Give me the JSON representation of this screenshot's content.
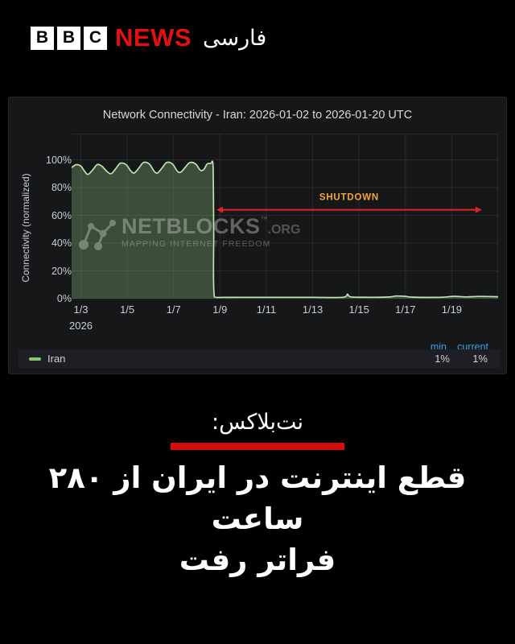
{
  "header": {
    "bbc_blocks": [
      "B",
      "B",
      "C"
    ],
    "news": "NEWS",
    "brand_fa": "فارسی",
    "news_color": "#e60f0f"
  },
  "chart": {
    "title": "Network Connectivity - Iran: 2026-01-02 to 2026-01-20 UTC",
    "ylabel": "Connectivity (normalized)",
    "year_label": "2026",
    "watermark": {
      "name": "NETBLOCKS",
      "tm": "™",
      "org": ".ORG",
      "tagline": "MAPPING INTERNET FREEDOM"
    },
    "legend": {
      "series_label": "Iran",
      "col_min": "min",
      "col_current": "current",
      "min_value": "1%",
      "current_value": "1%"
    }
  },
  "chart_data": {
    "type": "area",
    "title": "Network Connectivity - Iran: 2026-01-02 to 2026-01-20 UTC",
    "xlabel": "",
    "ylabel": "Connectivity (normalized)",
    "ylim": [
      0,
      100
    ],
    "y_ticks": [
      "0%",
      "20%",
      "40%",
      "60%",
      "80%",
      "100%"
    ],
    "x_tick_labels": [
      "1/3",
      "1/5",
      "1/7",
      "1/9",
      "1/11",
      "1/13",
      "1/15",
      "1/17",
      "1/19"
    ],
    "x_tick_days": [
      3,
      5,
      7,
      9,
      11,
      13,
      15,
      17,
      19
    ],
    "x_domain_days": [
      2.6,
      21.0
    ],
    "grid": true,
    "legend_position": "bottom",
    "series": [
      {
        "name": "Iran",
        "line_color": "#bfe3b0",
        "fill_color": "rgba(150,205,135,0.30)",
        "min": "1%",
        "current": "1%",
        "points_day_value": [
          [
            2.6,
            94.5
          ],
          [
            2.8,
            96.5
          ],
          [
            3.0,
            95.5
          ],
          [
            3.15,
            92
          ],
          [
            3.3,
            89.5
          ],
          [
            3.5,
            92.5
          ],
          [
            3.7,
            96.5
          ],
          [
            3.9,
            95.5
          ],
          [
            4.1,
            92
          ],
          [
            4.3,
            90
          ],
          [
            4.5,
            93.5
          ],
          [
            4.7,
            97.5
          ],
          [
            4.95,
            96.5
          ],
          [
            5.15,
            92
          ],
          [
            5.3,
            90.5
          ],
          [
            5.5,
            94
          ],
          [
            5.7,
            98
          ],
          [
            5.95,
            97
          ],
          [
            6.15,
            92
          ],
          [
            6.3,
            90.5
          ],
          [
            6.5,
            94
          ],
          [
            6.7,
            98
          ],
          [
            6.95,
            97
          ],
          [
            7.15,
            92
          ],
          [
            7.3,
            91
          ],
          [
            7.5,
            94.5
          ],
          [
            7.7,
            98
          ],
          [
            7.95,
            97
          ],
          [
            8.15,
            92.5
          ],
          [
            8.3,
            93
          ],
          [
            8.45,
            97
          ],
          [
            8.6,
            97.3
          ],
          [
            8.7,
            97
          ],
          [
            8.73,
            50
          ],
          [
            8.76,
            1.3
          ],
          [
            9.2,
            1
          ],
          [
            10,
            1
          ],
          [
            11,
            1
          ],
          [
            12,
            1
          ],
          [
            13,
            1
          ],
          [
            14.3,
            1
          ],
          [
            14.5,
            3.2
          ],
          [
            14.65,
            1.3
          ],
          [
            15.5,
            1
          ],
          [
            16.3,
            1.2
          ],
          [
            16.6,
            1.9
          ],
          [
            17.0,
            1.7
          ],
          [
            17.3,
            1.1
          ],
          [
            18.5,
            1
          ],
          [
            19.1,
            1.7
          ],
          [
            19.6,
            1.3
          ],
          [
            20.2,
            1.6
          ],
          [
            21.0,
            1.4
          ]
        ]
      }
    ],
    "annotation": {
      "label": "SHUTDOWN",
      "text_color": "#f2a73b",
      "line_color": "#e32222",
      "y_value": 64,
      "x_from_day": 8.85,
      "x_to_day": 20.3
    }
  },
  "footer": {
    "kicker": "نت‌بلاکس:",
    "headline": "قطع اینترنت در ایران از ۲۸۰ ساعت\nفراتر رفت",
    "divider_color": "#d40d0d"
  }
}
